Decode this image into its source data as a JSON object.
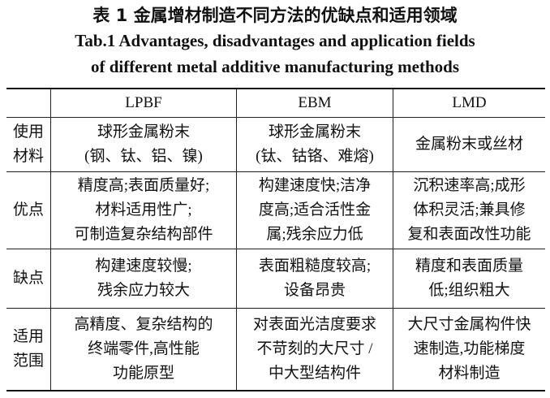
{
  "title": {
    "zh": "表 1  金属增材制造不同方法的优缺点和适用领域",
    "en_lines": [
      "Tab.1  Advantages, disadvantages and application fields",
      "of different metal additive manufacturing methods"
    ]
  },
  "table": {
    "columns": [
      "LPBF",
      "EBM",
      "LMD"
    ],
    "rows": [
      {
        "label": [
          "使用",
          "材料"
        ],
        "cells": [
          [
            "球形金属粉末",
            "(钢、钛、铝、镍)"
          ],
          [
            "球形金属粉末",
            "(钛、钴铬、难熔)"
          ],
          [
            "金属粉末或丝材"
          ]
        ]
      },
      {
        "label": [
          "优点"
        ],
        "cells": [
          [
            "精度高;表面质量好;",
            "材料适用性广;",
            "可制造复杂结构部件"
          ],
          [
            "构建速度快;洁净",
            "度高;适合活性金",
            "属;残余应力低"
          ],
          [
            "沉积速率高;成形",
            "体积灵活;兼具修",
            "复和表面改性功能"
          ]
        ]
      },
      {
        "label": [
          "缺点"
        ],
        "cells": [
          [
            "构建速度较慢;",
            "残余应力较大"
          ],
          [
            "表面粗糙度较高;",
            "设备昂贵"
          ],
          [
            "精度和表面质量",
            "低;组织粗大"
          ]
        ]
      },
      {
        "label": [
          "适用",
          "范围"
        ],
        "cells": [
          [
            "高精度、复杂结构的",
            "终端零件,高性能",
            "功能原型"
          ],
          [
            "对表面光洁度要求",
            "不苛刻的大尺寸 /",
            "中大型结构件"
          ],
          [
            "大尺寸金属构件快",
            "速制造,功能梯度",
            "材料制造"
          ]
        ]
      }
    ]
  }
}
